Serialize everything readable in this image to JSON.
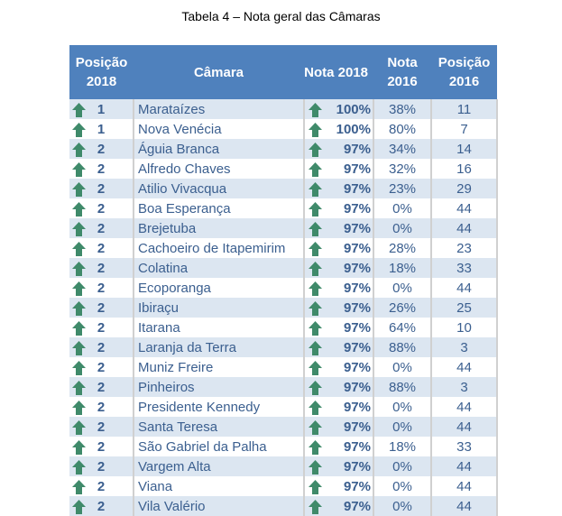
{
  "title": "Tabela 4 – Nota geral das Câmaras",
  "headers": {
    "pos2018": "Posição 2018",
    "camara": "Câmara",
    "nota2018": "Nota 2018",
    "nota2016": "Nota 2016",
    "pos2016": "Posição 2016"
  },
  "icon": "up-arrow-icon",
  "icon_color": "#3f8a6a",
  "header_color": "#4f81bd",
  "rows": [
    {
      "pos": "1",
      "name": "Marataízes",
      "n18": "100%",
      "n16": "38%",
      "p16": "11"
    },
    {
      "pos": "1",
      "name": "Nova Venécia",
      "n18": "100%",
      "n16": "80%",
      "p16": "7"
    },
    {
      "pos": "2",
      "name": "Águia Branca",
      "n18": "97%",
      "n16": "34%",
      "p16": "14"
    },
    {
      "pos": "2",
      "name": "Alfredo Chaves",
      "n18": "97%",
      "n16": "32%",
      "p16": "16"
    },
    {
      "pos": "2",
      "name": "Atilio Vivacqua",
      "n18": "97%",
      "n16": "23%",
      "p16": "29"
    },
    {
      "pos": "2",
      "name": "Boa Esperança",
      "n18": "97%",
      "n16": "0%",
      "p16": "44"
    },
    {
      "pos": "2",
      "name": "Brejetuba",
      "n18": "97%",
      "n16": "0%",
      "p16": "44"
    },
    {
      "pos": "2",
      "name": "Cachoeiro de Itapemirim",
      "n18": "97%",
      "n16": "28%",
      "p16": "23"
    },
    {
      "pos": "2",
      "name": "Colatina",
      "n18": "97%",
      "n16": "18%",
      "p16": "33"
    },
    {
      "pos": "2",
      "name": "Ecoporanga",
      "n18": "97%",
      "n16": "0%",
      "p16": "44"
    },
    {
      "pos": "2",
      "name": "Ibiraçu",
      "n18": "97%",
      "n16": "26%",
      "p16": "25"
    },
    {
      "pos": "2",
      "name": "Itarana",
      "n18": "97%",
      "n16": "64%",
      "p16": "10"
    },
    {
      "pos": "2",
      "name": "Laranja da Terra",
      "n18": "97%",
      "n16": "88%",
      "p16": "3"
    },
    {
      "pos": "2",
      "name": "Muniz Freire",
      "n18": "97%",
      "n16": "0%",
      "p16": "44"
    },
    {
      "pos": "2",
      "name": "Pinheiros",
      "n18": "97%",
      "n16": "88%",
      "p16": "3"
    },
    {
      "pos": "2",
      "name": "Presidente Kennedy",
      "n18": "97%",
      "n16": "0%",
      "p16": "44"
    },
    {
      "pos": "2",
      "name": "Santa Teresa",
      "n18": "97%",
      "n16": "0%",
      "p16": "44"
    },
    {
      "pos": "2",
      "name": "São Gabriel da Palha",
      "n18": "97%",
      "n16": "18%",
      "p16": "33"
    },
    {
      "pos": "2",
      "name": "Vargem Alta",
      "n18": "97%",
      "n16": "0%",
      "p16": "44"
    },
    {
      "pos": "2",
      "name": "Viana",
      "n18": "97%",
      "n16": "0%",
      "p16": "44"
    },
    {
      "pos": "2",
      "name": "Vila Valério",
      "n18": "97%",
      "n16": "0%",
      "p16": "44"
    }
  ]
}
